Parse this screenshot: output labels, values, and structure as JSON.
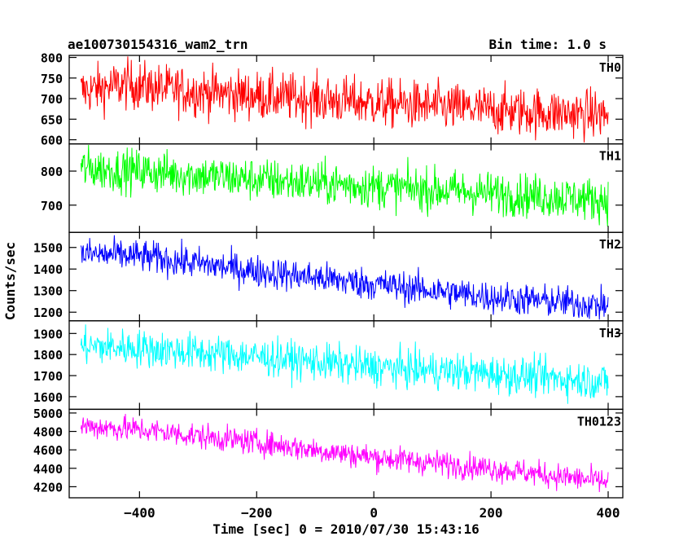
{
  "chart_data": {
    "type": "line",
    "title_left": "ae100730154316_wam2_trn",
    "title_right": "Bin time: 1.0 s",
    "xlabel": "Time [sec] 0 = 2010/07/30 15:43:16",
    "ylabel": "Counts/sec",
    "xlim": [
      -520,
      425
    ],
    "x_ticks": [
      -400,
      -200,
      0,
      200,
      400
    ],
    "x_range": [
      -500,
      400
    ],
    "grid": false,
    "panels": [
      {
        "name": "TH0",
        "color": "#ff0000",
        "ylim": [
          590,
          805
        ],
        "yticks": [
          600,
          650,
          700,
          750,
          800
        ],
        "trend": [
          [
            -500,
            718
          ],
          [
            -420,
            735
          ],
          [
            -350,
            722
          ],
          [
            -200,
            707
          ],
          [
            0,
            690
          ],
          [
            200,
            672
          ],
          [
            400,
            660
          ]
        ],
        "noise": 30
      },
      {
        "name": "TH1",
        "color": "#00ff00",
        "ylim": [
          620,
          880
        ],
        "yticks": [
          700,
          800
        ],
        "trend": [
          [
            -500,
            808
          ],
          [
            -400,
            800
          ],
          [
            -200,
            775
          ],
          [
            0,
            755
          ],
          [
            200,
            735
          ],
          [
            400,
            715
          ]
        ],
        "noise": 32
      },
      {
        "name": "TH2",
        "color": "#0000ff",
        "ylim": [
          1160,
          1570
        ],
        "yticks": [
          1200,
          1300,
          1400,
          1500
        ],
        "trend": [
          [
            -500,
            1470
          ],
          [
            -400,
            1460
          ],
          [
            -200,
            1390
          ],
          [
            0,
            1330
          ],
          [
            200,
            1270
          ],
          [
            400,
            1230
          ]
        ],
        "noise": 38
      },
      {
        "name": "TH3",
        "color": "#00ffff",
        "ylim": [
          1540,
          1960
        ],
        "yticks": [
          1600,
          1700,
          1800,
          1900
        ],
        "trend": [
          [
            -500,
            1840
          ],
          [
            -400,
            1830
          ],
          [
            -200,
            1790
          ],
          [
            0,
            1740
          ],
          [
            200,
            1710
          ],
          [
            400,
            1670
          ]
        ],
        "noise": 45
      },
      {
        "name": "TH0123",
        "color": "#ff00ff",
        "ylim": [
          4080,
          5040
        ],
        "yticks": [
          4200,
          4400,
          4600,
          4800,
          5000
        ],
        "trend": [
          [
            -500,
            4860
          ],
          [
            -400,
            4820
          ],
          [
            -200,
            4680
          ],
          [
            0,
            4520
          ],
          [
            200,
            4400
          ],
          [
            400,
            4250
          ]
        ],
        "noise": 70
      }
    ]
  }
}
